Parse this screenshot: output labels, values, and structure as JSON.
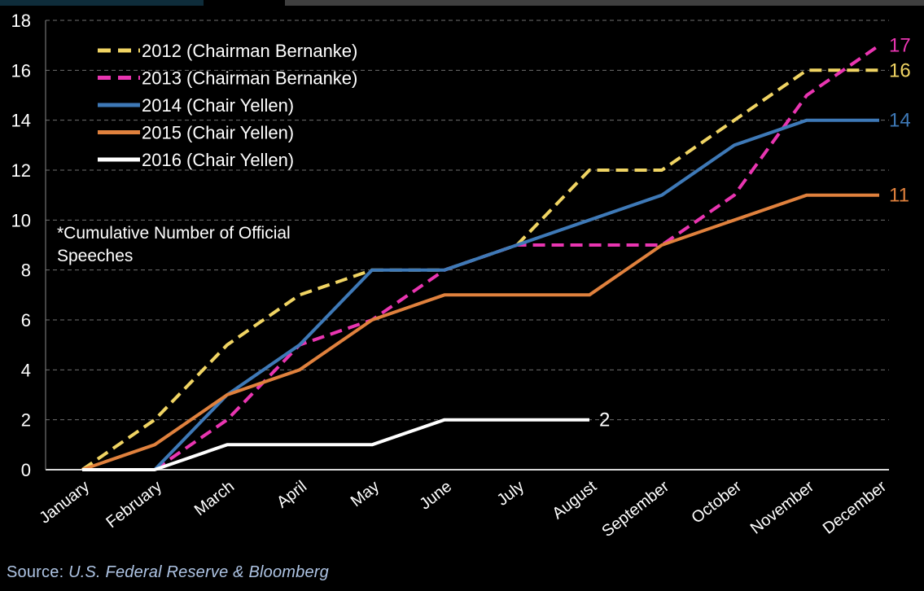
{
  "page": {
    "background": "#000000"
  },
  "top_strips": {
    "teal_color": "#0e2c3a",
    "gray_color": "#3f3f3f"
  },
  "source": {
    "prefix": "Source: ",
    "text": "U.S. Federal Reserve & Bloomberg",
    "color": "#aec4e4"
  },
  "chart_data": {
    "type": "line",
    "title": "",
    "annotation": {
      "line1": "*Cumulative Number of Official",
      "line2": "Speeches"
    },
    "categories": [
      "January",
      "February",
      "March",
      "April",
      "May",
      "June",
      "July",
      "August",
      "September",
      "October",
      "November",
      "December"
    ],
    "ylim": [
      0,
      18
    ],
    "ytick_step": 2,
    "grid": true,
    "grid_color": "#6f6f6f",
    "axis_color": "#d9d9d9",
    "tick_label_color": "#ffffff",
    "legend_position": "top-left",
    "series": [
      {
        "name": "2012 (Chairman Bernanke)",
        "color": "#f0d463",
        "dashed": true,
        "values": [
          0,
          2,
          5,
          7,
          8,
          8,
          9,
          12,
          12,
          14,
          16,
          16
        ],
        "end_label": "16"
      },
      {
        "name": "2013 (Chairman Bernanke)",
        "color": "#e935b1",
        "dashed": true,
        "values": [
          null,
          0,
          2,
          5,
          6,
          8,
          9,
          9,
          9,
          11,
          15,
          17
        ],
        "end_label": "17"
      },
      {
        "name": "2014 (Chair Yellen)",
        "color": "#3e79b7",
        "dashed": false,
        "values": [
          null,
          0,
          3,
          5,
          8,
          8,
          9,
          10,
          11,
          13,
          14,
          14
        ],
        "end_label": "14"
      },
      {
        "name": "2015 (Chair Yellen)",
        "color": "#e0813d",
        "dashed": false,
        "values": [
          0,
          1,
          3,
          4,
          6,
          7,
          7,
          7,
          9,
          10,
          11,
          11
        ],
        "end_label": "11"
      },
      {
        "name": "2016 (Chair Yellen)",
        "color": "#ffffff",
        "dashed": false,
        "values": [
          0,
          0,
          1,
          1,
          1,
          2,
          2,
          2,
          null,
          null,
          null,
          null
        ],
        "end_label": "2"
      }
    ]
  }
}
